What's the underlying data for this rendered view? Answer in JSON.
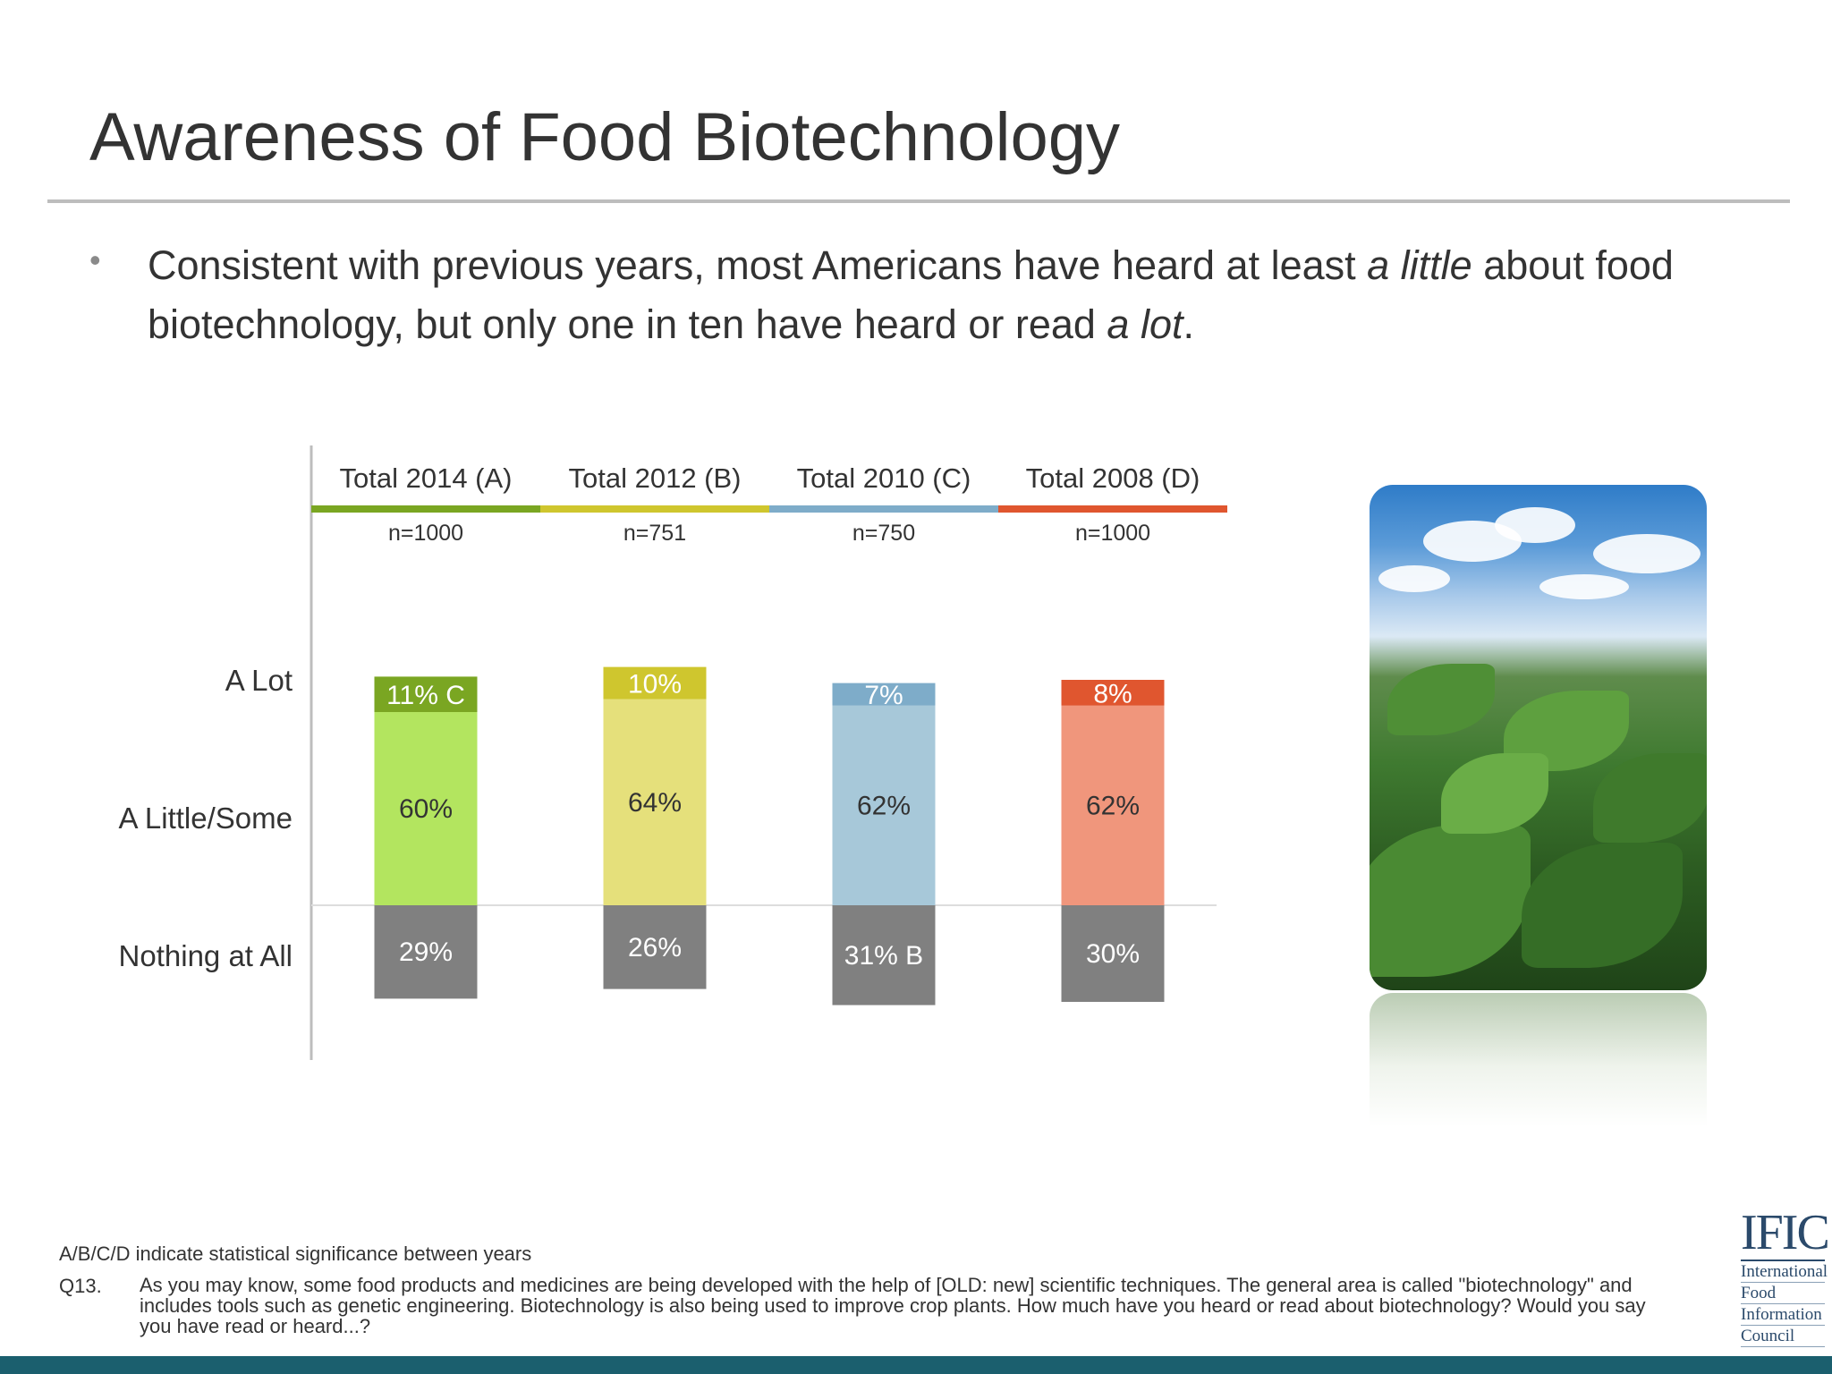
{
  "slide": {
    "title": "Awareness of Food Biotechnology",
    "bullet": {
      "part1": "Consistent with previous years, most Americans have heard at least ",
      "emph1": "a little",
      "part2": " about food biotechnology, but only one in ten have heard or read ",
      "emph2": "a lot",
      "part3": "."
    },
    "footnote": "A/B/C/D indicate statistical significance between years",
    "question_label": "Q13.",
    "question_text": "As you may know, some food products and medicines are being developed with the help of [OLD: new] scientific techniques.  The general area is called \"biotechnology\" and includes tools such as genetic engineering.  Biotechnology is also being used to improve crop plants.  How much have you heard or read about biotechnology?  Would you say you have read or heard...?",
    "logo": {
      "mark": "IFIC",
      "lines": [
        "International",
        "Food",
        "Information",
        "Council"
      ]
    },
    "photo_icon": "tobacco-field-photo"
  },
  "chart_data": {
    "type": "bar",
    "stacked": true,
    "categories": [
      "Total 2014 (A)",
      "Total 2012 (B)",
      "Total 2010 (C)",
      "Total 2008 (D)"
    ],
    "sample_sizes": [
      "n=1000",
      "n=751",
      "n=750",
      "n=1000"
    ],
    "header_colors": [
      "#7aa622",
      "#cfc62e",
      "#7eacc9",
      "#e0562f"
    ],
    "row_labels": [
      "A Lot",
      "A Little/Some",
      "Nothing at All"
    ],
    "series": [
      {
        "name": "A Lot",
        "values": [
          11,
          10,
          7,
          8
        ],
        "labels": [
          "11% C",
          "10%",
          "7%",
          "8%"
        ],
        "colors": [
          "#7aa622",
          "#cfc62e",
          "#7eacc9",
          "#e0562f"
        ]
      },
      {
        "name": "A Little/Some",
        "values": [
          60,
          64,
          62,
          62
        ],
        "labels": [
          "60%",
          "64%",
          "62%",
          "62%"
        ],
        "colors": [
          "#b3e55f",
          "#e5e07b",
          "#a7c8d9",
          "#f0967c"
        ]
      },
      {
        "name": "Nothing at All",
        "values": [
          29,
          26,
          31,
          30
        ],
        "labels": [
          "29%",
          "26%",
          "31% B",
          "30%"
        ],
        "colors": [
          "#808080",
          "#808080",
          "#808080",
          "#808080"
        ]
      }
    ]
  }
}
